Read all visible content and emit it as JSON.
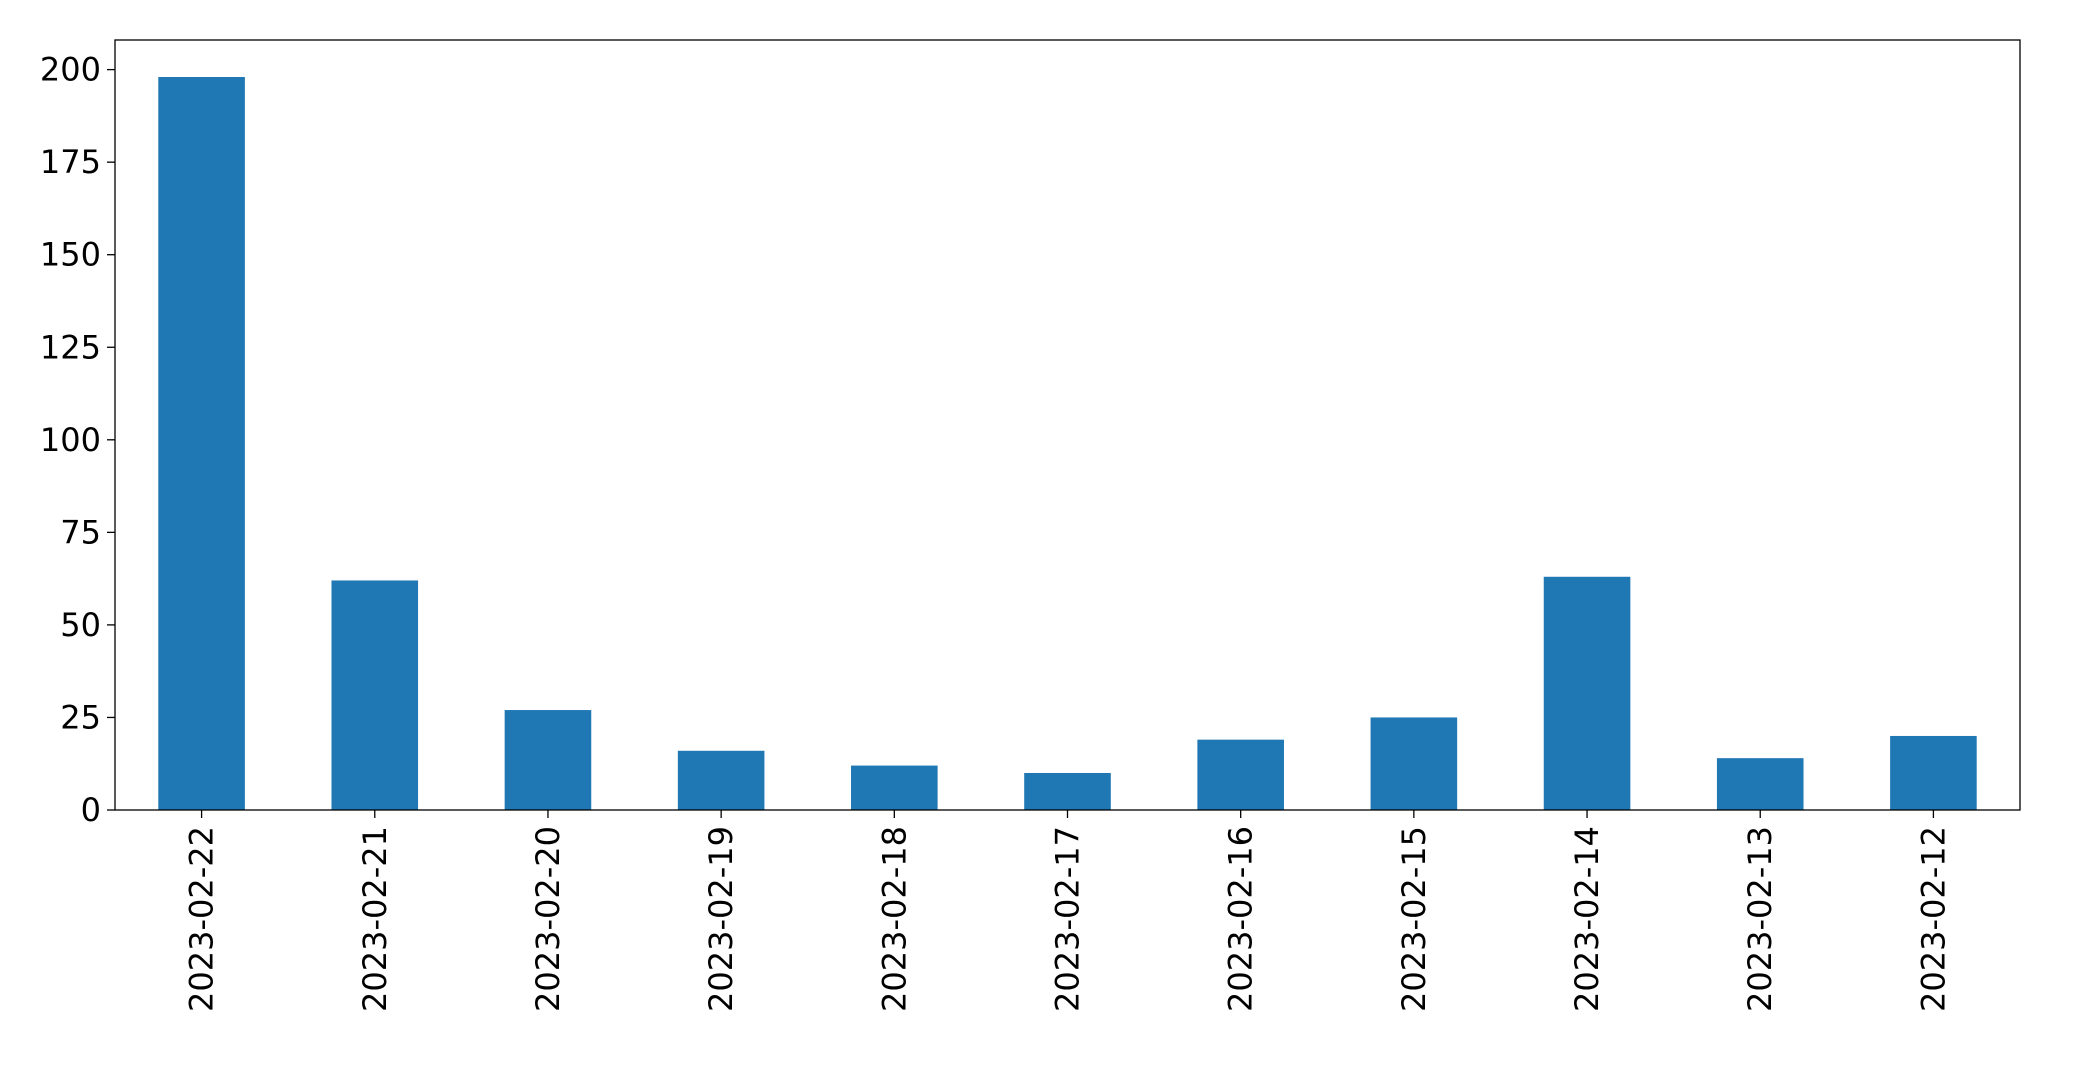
{
  "chart_data": {
    "type": "bar",
    "title": "",
    "xlabel": "",
    "ylabel": "",
    "categories": [
      "2023-02-22",
      "2023-02-21",
      "2023-02-20",
      "2023-02-19",
      "2023-02-18",
      "2023-02-17",
      "2023-02-16",
      "2023-02-15",
      "2023-02-14",
      "2023-02-13",
      "2023-02-12"
    ],
    "series": [
      {
        "values": [
          198,
          62,
          27,
          16,
          12,
          10,
          19,
          25,
          63,
          14,
          20
        ],
        "color": "#1f77b4"
      }
    ],
    "ylim": [
      0,
      208
    ],
    "yticks": [
      0,
      25,
      50,
      75,
      100,
      125,
      150,
      175,
      200
    ],
    "grid": false,
    "legend": "none"
  }
}
